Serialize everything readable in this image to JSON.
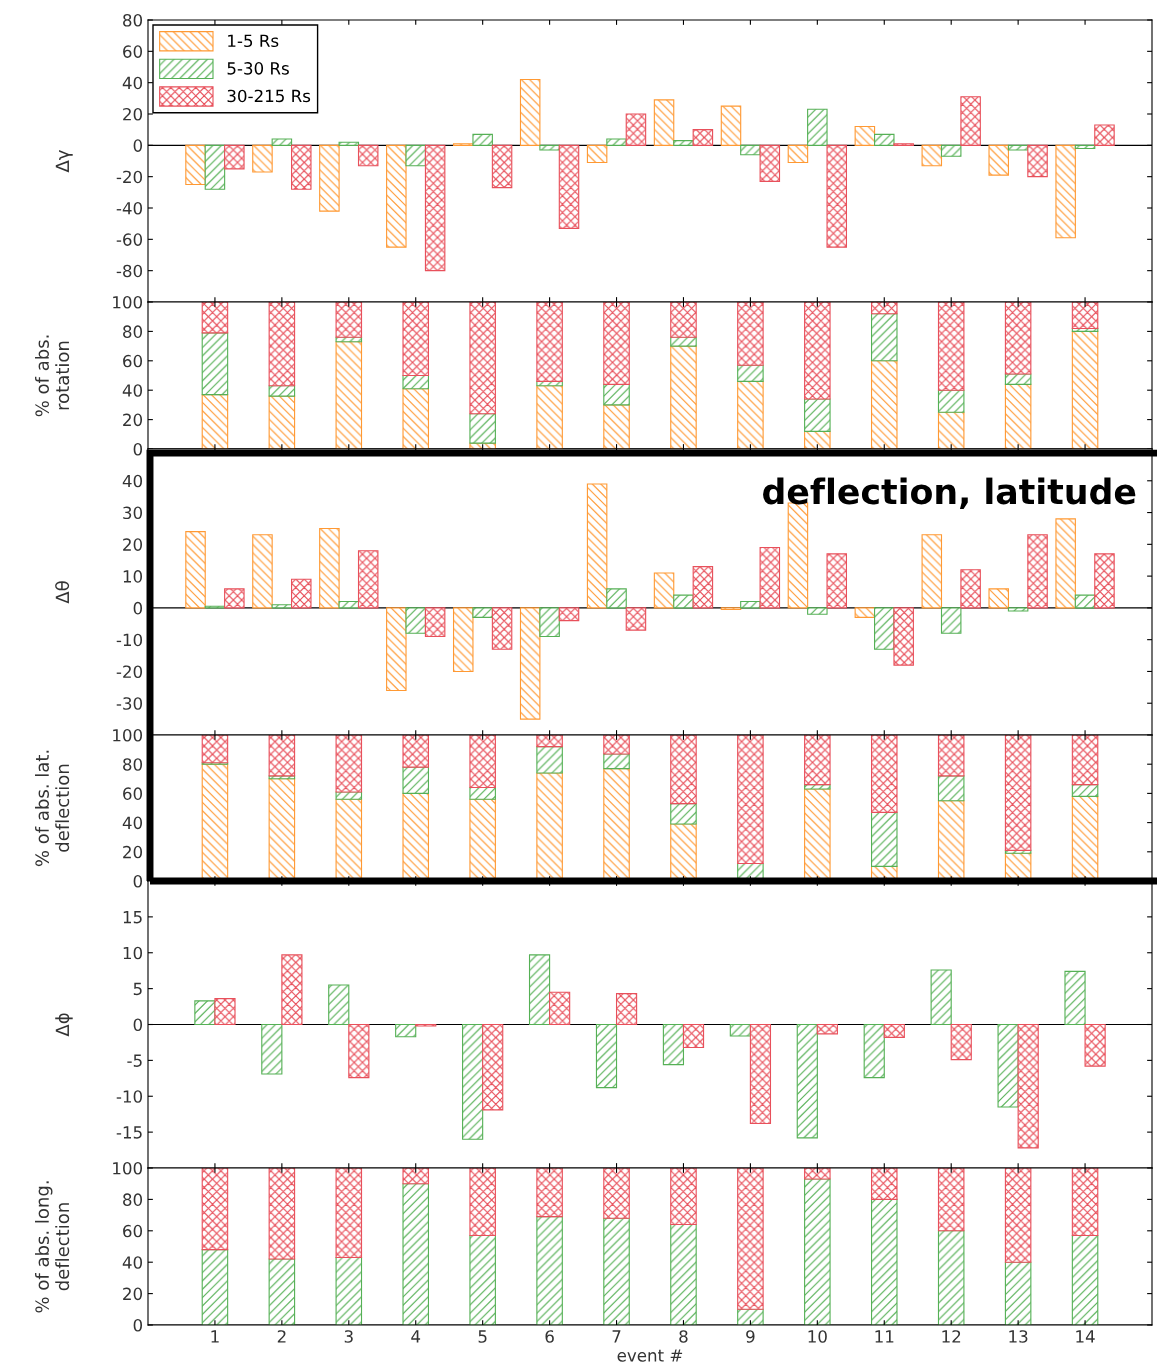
{
  "chart_data": [
    {
      "type": "bar",
      "ylabel": "Δγ",
      "x": [
        1,
        2,
        3,
        4,
        5,
        6,
        7,
        8,
        9,
        10,
        11,
        12,
        13,
        14
      ],
      "xlim": [
        0,
        15
      ],
      "xticks": [
        1,
        2,
        3,
        4,
        5,
        6,
        7,
        8,
        9,
        10,
        11,
        12,
        13,
        14
      ],
      "ylim": [
        -100,
        80
      ],
      "yticks": [
        -80,
        -60,
        -40,
        -20,
        0,
        20,
        40,
        60,
        80
      ],
      "tick_labels": "y",
      "legend": "top left",
      "series": [
        {
          "name": "1-5 Rs",
          "color": "#ff9933",
          "values": [
            -25,
            -17,
            -42,
            -65,
            1,
            42,
            -11,
            29,
            25,
            -11,
            12,
            -13,
            -19,
            -59
          ]
        },
        {
          "name": "5-30 Rs",
          "color": "#55b055",
          "values": [
            -28,
            4,
            2,
            -13,
            7,
            -3,
            4,
            3,
            -6,
            23,
            7,
            -7,
            -3,
            -2
          ]
        },
        {
          "name": "30-215 Rs",
          "color": "#e8505b",
          "values": [
            -15,
            -28,
            -13,
            -80,
            -27,
            -53,
            20,
            10,
            -23,
            -65,
            1,
            31,
            -20,
            13
          ]
        }
      ]
    },
    {
      "type": "bar",
      "stacked": true,
      "ylabel": "% of abs.\nrotation",
      "x": [
        1,
        2,
        3,
        4,
        5,
        6,
        7,
        8,
        9,
        10,
        11,
        12,
        13,
        14
      ],
      "xlim": [
        0,
        15
      ],
      "xticks": [
        1,
        2,
        3,
        4,
        5,
        6,
        7,
        8,
        9,
        10,
        11,
        12,
        13,
        14
      ],
      "ylim": [
        0,
        100
      ],
      "yticks": [
        0,
        20,
        40,
        60,
        80,
        100
      ],
      "tick_labels": "y",
      "series": [
        {
          "color": "#ff9933",
          "values": [
            37,
            36,
            73,
            41,
            4,
            43,
            30,
            70,
            46,
            12,
            60,
            25,
            44,
            80
          ]
        },
        {
          "color": "#55b055",
          "values": [
            42,
            7,
            3,
            9,
            20,
            3,
            14,
            6,
            11,
            22,
            32,
            15,
            7,
            2
          ]
        },
        {
          "color": "#e8505b",
          "values": [
            21,
            57,
            24,
            50,
            76,
            54,
            56,
            24,
            43,
            66,
            8,
            60,
            49,
            18
          ]
        }
      ]
    },
    {
      "type": "bar",
      "ylabel": "Δθ",
      "x": [
        1,
        2,
        3,
        4,
        5,
        6,
        7,
        8,
        9,
        10,
        11,
        12,
        13,
        14
      ],
      "xlim": [
        0,
        15
      ],
      "xticks": [
        1,
        2,
        3,
        4,
        5,
        6,
        7,
        8,
        9,
        10,
        11,
        12,
        13,
        14
      ],
      "ylim": [
        -40,
        50
      ],
      "yticks": [
        -30,
        -20,
        -10,
        0,
        10,
        20,
        30,
        40
      ],
      "tick_labels": "y",
      "annotations": [
        "deflection, latitude"
      ],
      "series": [
        {
          "color": "#ff9933",
          "values": [
            24,
            23,
            25,
            -26,
            -20,
            -35,
            39,
            11,
            -0.5,
            33,
            -3,
            23,
            6,
            28
          ]
        },
        {
          "color": "#55b055",
          "values": [
            0.5,
            1,
            2,
            -8,
            -3,
            -9,
            6,
            4,
            2,
            -2,
            -13,
            -8,
            -1,
            4
          ]
        },
        {
          "color": "#e8505b",
          "values": [
            6,
            9,
            18,
            -9,
            -13,
            -4,
            -7,
            13,
            19,
            17,
            -18,
            12,
            23,
            17
          ]
        }
      ]
    },
    {
      "type": "bar",
      "stacked": true,
      "ylabel": "% of abs. lat.\ndeflection",
      "x": [
        1,
        2,
        3,
        4,
        5,
        6,
        7,
        8,
        9,
        10,
        11,
        12,
        13,
        14
      ],
      "xlim": [
        0,
        15
      ],
      "xticks": [
        1,
        2,
        3,
        4,
        5,
        6,
        7,
        8,
        9,
        10,
        11,
        12,
        13,
        14
      ],
      "ylim": [
        0,
        100
      ],
      "yticks": [
        0,
        20,
        40,
        60,
        80,
        100
      ],
      "tick_labels": "y",
      "series": [
        {
          "color": "#ff9933",
          "values": [
            80,
            70,
            56,
            60,
            56,
            74,
            77,
            39,
            1,
            63,
            10,
            55,
            19,
            58
          ]
        },
        {
          "color": "#55b055",
          "values": [
            1,
            2,
            5,
            18,
            8,
            18,
            10,
            14,
            11,
            3,
            37,
            17,
            2,
            8
          ]
        },
        {
          "color": "#e8505b",
          "values": [
            19,
            28,
            39,
            22,
            36,
            8,
            13,
            47,
            88,
            34,
            53,
            28,
            79,
            34
          ]
        }
      ]
    },
    {
      "type": "bar",
      "ylabel": "Δϕ",
      "x": [
        1,
        2,
        3,
        4,
        5,
        6,
        7,
        8,
        9,
        10,
        11,
        12,
        13,
        14
      ],
      "xlim": [
        0,
        15
      ],
      "xticks": [
        1,
        2,
        3,
        4,
        5,
        6,
        7,
        8,
        9,
        10,
        11,
        12,
        13,
        14
      ],
      "ylim": [
        -20,
        20
      ],
      "yticks": [
        -15,
        -10,
        -5,
        0,
        5,
        10,
        15
      ],
      "tick_labels": "y",
      "series": [
        {
          "color": "#55b055",
          "values": [
            3.3,
            -6.9,
            5.5,
            -1.7,
            -16,
            9.7,
            -8.8,
            -5.6,
            -1.6,
            -15.8,
            -7.4,
            7.6,
            -11.5,
            7.4
          ]
        },
        {
          "color": "#e8505b",
          "values": [
            3.6,
            9.7,
            -7.4,
            -0.2,
            -11.9,
            4.5,
            4.3,
            -3.2,
            -13.8,
            -1.3,
            -1.8,
            -4.9,
            -17.2,
            -5.8
          ]
        }
      ]
    },
    {
      "type": "bar",
      "stacked": true,
      "ylabel": "% of abs. long.\ndeflection",
      "xlabel": "event #",
      "x": [
        1,
        2,
        3,
        4,
        5,
        6,
        7,
        8,
        9,
        10,
        11,
        12,
        13,
        14
      ],
      "xlim": [
        0,
        15
      ],
      "xticks": [
        1,
        2,
        3,
        4,
        5,
        6,
        7,
        8,
        9,
        10,
        11,
        12,
        13,
        14
      ],
      "ylim": [
        0,
        100
      ],
      "yticks": [
        0,
        20,
        40,
        60,
        80,
        100
      ],
      "series": [
        {
          "color": "#55b055",
          "values": [
            48,
            42,
            43,
            90,
            57,
            69,
            68,
            64,
            10,
            93,
            80,
            60,
            40,
            57
          ]
        },
        {
          "color": "#e8505b",
          "values": [
            52,
            58,
            57,
            10,
            43,
            31,
            32,
            36,
            90,
            7,
            20,
            40,
            60,
            43
          ]
        }
      ]
    }
  ]
}
